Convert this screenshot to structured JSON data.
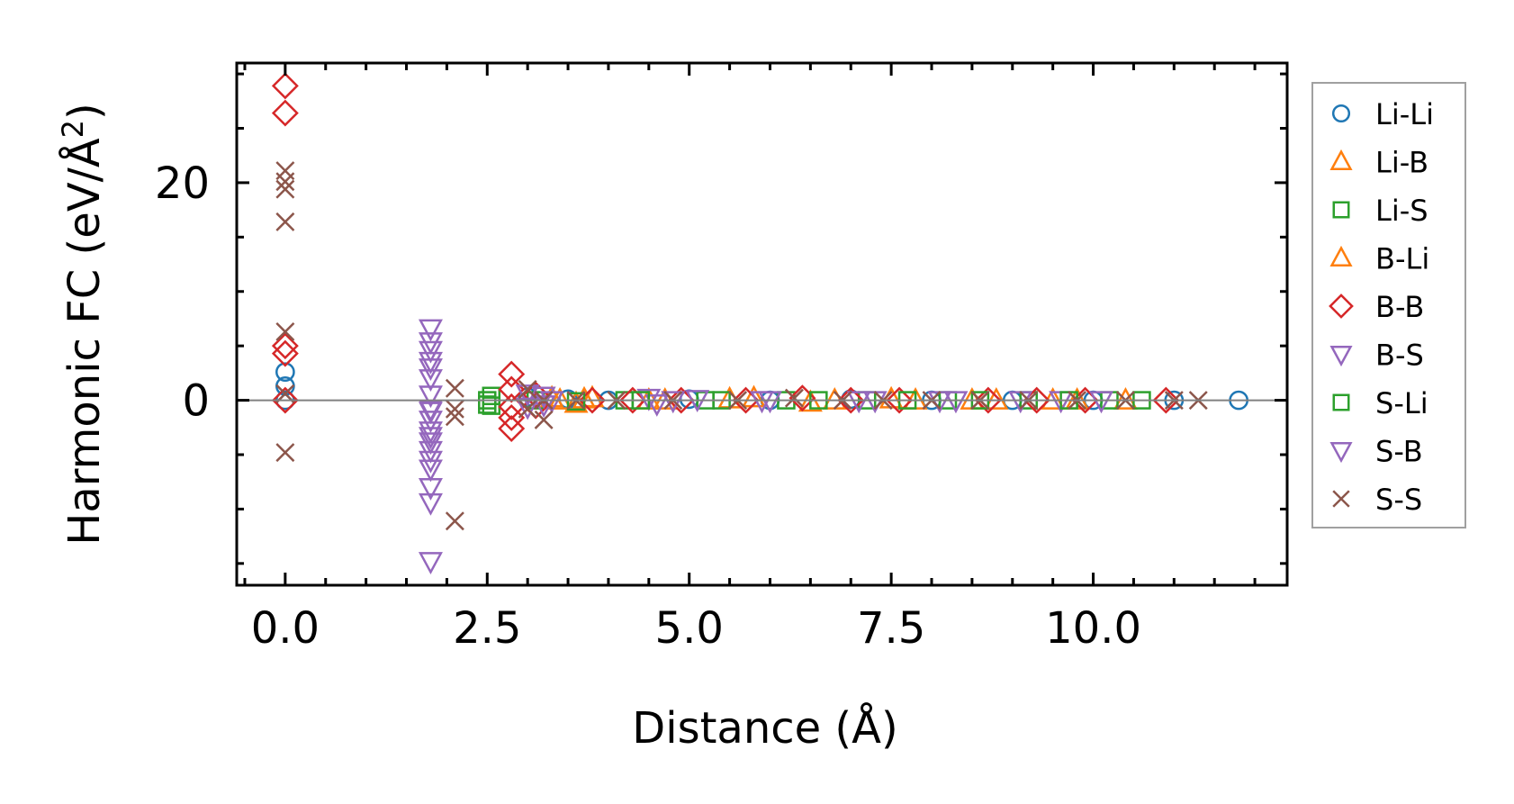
{
  "chart_data": {
    "type": "scatter",
    "xlabel": "Distance (Å)",
    "ylabel_text": "Harmonic FC (eV/Å",
    "ylabel_sup": "2",
    "ylabel_close": ")",
    "xlim": [
      -0.6,
      12.4
    ],
    "ylim": [
      -17,
      31
    ],
    "x_ticks": [
      0.0,
      2.5,
      5.0,
      7.5,
      10.0
    ],
    "x_tick_labels": [
      "0.0",
      "2.5",
      "5.0",
      "7.5",
      "10.0"
    ],
    "y_ticks": [
      0,
      20
    ],
    "y_tick_labels": [
      "0",
      "20"
    ],
    "y_minor_step": 5,
    "x_minor_step": 0.5,
    "zero_line": true,
    "grid": false,
    "legend_position": "outside-right",
    "series": [
      {
        "name": "Li-Li",
        "marker": "circle",
        "color": "#1f77b4",
        "points": [
          [
            0,
            2.6
          ],
          [
            0,
            1.3
          ],
          [
            0,
            0
          ],
          [
            3.0,
            0.3
          ],
          [
            3.5,
            0.1
          ],
          [
            4.0,
            0
          ],
          [
            5.0,
            0.1
          ],
          [
            6.0,
            0
          ],
          [
            7.0,
            0.1
          ],
          [
            8.0,
            0
          ],
          [
            9.0,
            0
          ],
          [
            10.0,
            0
          ],
          [
            11.0,
            0
          ],
          [
            11.8,
            0
          ]
        ]
      },
      {
        "name": "Li-B",
        "marker": "triangle-up",
        "color": "#ff7f0e",
        "points": [
          [
            3.3,
            0.2
          ],
          [
            3.6,
            -0.3
          ],
          [
            3.8,
            0.2
          ],
          [
            4.5,
            0
          ],
          [
            5.5,
            0.1
          ],
          [
            6.5,
            -0.2
          ],
          [
            7.5,
            0.1
          ],
          [
            8.5,
            0
          ],
          [
            9.5,
            0
          ],
          [
            10.4,
            0
          ]
        ]
      },
      {
        "name": "Li-S",
        "marker": "square",
        "color": "#2ca02c",
        "points": [
          [
            2.55,
            0.4
          ],
          [
            2.55,
            -0.5
          ],
          [
            3.1,
            0
          ],
          [
            4.2,
            0
          ],
          [
            5.2,
            0
          ],
          [
            6.2,
            0
          ],
          [
            7.2,
            0
          ],
          [
            8.2,
            0
          ],
          [
            9.2,
            0
          ],
          [
            10.2,
            0
          ]
        ]
      },
      {
        "name": "B-Li",
        "marker": "triangle-up",
        "color": "#ff7f0e",
        "points": [
          [
            3.4,
            0
          ],
          [
            3.7,
            0.1
          ],
          [
            4.7,
            0
          ],
          [
            5.8,
            0.2
          ],
          [
            6.8,
            0
          ],
          [
            7.8,
            0
          ],
          [
            8.8,
            0
          ],
          [
            9.8,
            0
          ]
        ]
      },
      {
        "name": "B-B",
        "marker": "diamond",
        "color": "#d62728",
        "points": [
          [
            0,
            28.9
          ],
          [
            0,
            26.4
          ],
          [
            0,
            5.0
          ],
          [
            0,
            4.3
          ],
          [
            0,
            0
          ],
          [
            2.8,
            2.4
          ],
          [
            2.8,
            1.0
          ],
          [
            2.8,
            -0.6
          ],
          [
            2.8,
            -1.6
          ],
          [
            2.8,
            -2.6
          ],
          [
            3.1,
            0.5
          ],
          [
            3.1,
            -0.5
          ],
          [
            3.8,
            0
          ],
          [
            4.3,
            0
          ],
          [
            4.9,
            0
          ],
          [
            5.7,
            0
          ],
          [
            6.4,
            0.2
          ],
          [
            7.0,
            0
          ],
          [
            7.6,
            0
          ],
          [
            8.7,
            0
          ],
          [
            9.3,
            0
          ],
          [
            9.9,
            0
          ],
          [
            10.9,
            0
          ]
        ]
      },
      {
        "name": "B-S",
        "marker": "triangle-down",
        "color": "#9467bd",
        "points": [
          [
            1.8,
            6.6
          ],
          [
            1.8,
            4.6
          ],
          [
            1.8,
            3.6
          ],
          [
            1.8,
            2.0
          ],
          [
            1.8,
            0.5
          ],
          [
            1.8,
            -0.8
          ],
          [
            1.8,
            -1.8
          ],
          [
            1.8,
            -2.8
          ],
          [
            1.8,
            -3.8
          ],
          [
            1.8,
            -4.6
          ],
          [
            1.8,
            -6.3
          ],
          [
            1.8,
            -8.0
          ],
          [
            1.8,
            -9.4
          ],
          [
            1.8,
            -14.8
          ],
          [
            3.0,
            0.6
          ],
          [
            3.0,
            -0.6
          ],
          [
            3.3,
            0
          ],
          [
            4.5,
            0.2
          ],
          [
            4.6,
            -0.3
          ],
          [
            5.1,
            0.1
          ],
          [
            6.0,
            0
          ],
          [
            7.3,
            0
          ],
          [
            8.3,
            0
          ],
          [
            9.6,
            0
          ]
        ]
      },
      {
        "name": "S-Li",
        "marker": "square",
        "color": "#2ca02c",
        "points": [
          [
            2.5,
            0
          ],
          [
            2.5,
            -0.4
          ],
          [
            3.6,
            -0.1
          ],
          [
            4.4,
            0
          ],
          [
            5.4,
            0
          ],
          [
            6.6,
            0
          ],
          [
            7.7,
            0
          ],
          [
            8.6,
            0
          ],
          [
            9.7,
            0
          ],
          [
            10.6,
            0
          ]
        ]
      },
      {
        "name": "S-B",
        "marker": "triangle-down",
        "color": "#9467bd",
        "points": [
          [
            1.8,
            5.4
          ],
          [
            1.8,
            3.0
          ],
          [
            1.8,
            -1.0
          ],
          [
            1.8,
            -3.3
          ],
          [
            1.8,
            -5.5
          ],
          [
            3.2,
            0.4
          ],
          [
            3.2,
            -0.4
          ],
          [
            4.8,
            0
          ],
          [
            5.9,
            0
          ],
          [
            7.1,
            0
          ],
          [
            8.1,
            0
          ],
          [
            9.1,
            0
          ],
          [
            10.1,
            0
          ]
        ]
      },
      {
        "name": "S-S",
        "marker": "x",
        "color": "#8c564b",
        "points": [
          [
            0,
            21.1
          ],
          [
            0,
            20.1
          ],
          [
            0,
            19.4
          ],
          [
            0,
            16.4
          ],
          [
            0,
            6.3
          ],
          [
            0,
            0.6
          ],
          [
            0,
            -4.8
          ],
          [
            2.1,
            1.1
          ],
          [
            2.1,
            -0.8
          ],
          [
            2.1,
            -1.5
          ],
          [
            2.1,
            -11.1
          ],
          [
            3.0,
            1.0
          ],
          [
            3.0,
            -0.8
          ],
          [
            3.2,
            0
          ],
          [
            3.2,
            -1.8
          ],
          [
            3.6,
            0
          ],
          [
            4.1,
            0
          ],
          [
            4.8,
            0
          ],
          [
            5.6,
            0
          ],
          [
            6.3,
            0.2
          ],
          [
            6.9,
            0
          ],
          [
            7.4,
            0
          ],
          [
            8.0,
            0
          ],
          [
            8.6,
            0
          ],
          [
            9.2,
            0
          ],
          [
            9.8,
            0
          ],
          [
            10.4,
            0
          ],
          [
            11.0,
            0
          ],
          [
            11.3,
            0
          ]
        ]
      }
    ]
  }
}
